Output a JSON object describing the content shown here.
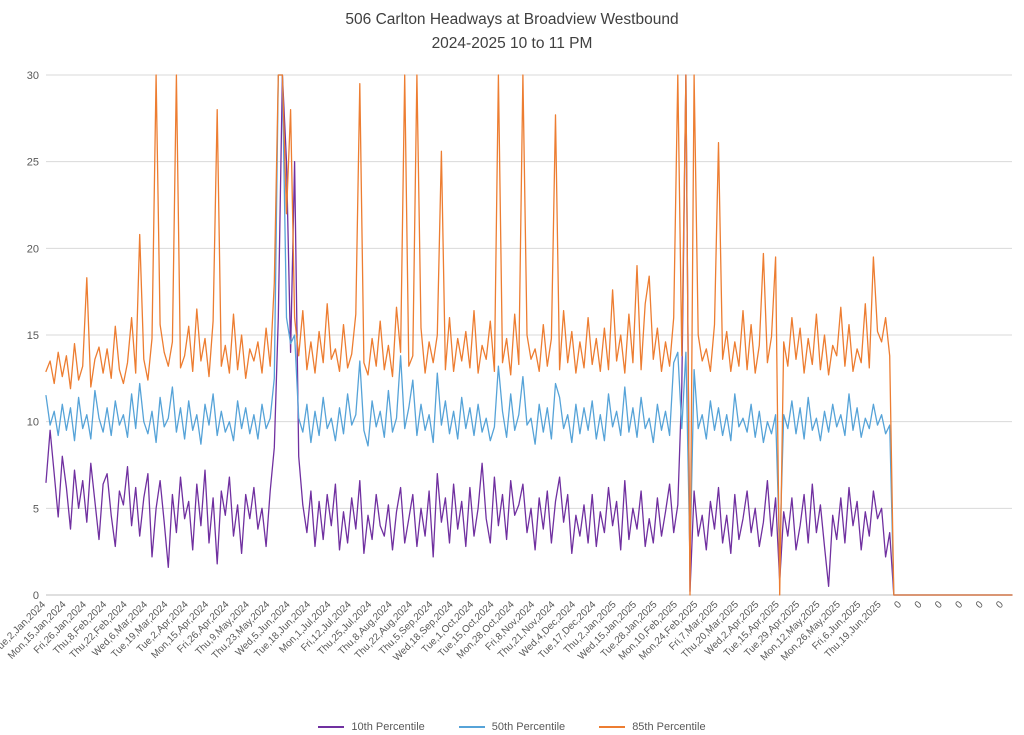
{
  "chart_data": {
    "type": "line",
    "title_line1": "506 Carlton Headways at Broadview Westbound",
    "title_line2": "2024-2025 10 to 11 PM",
    "ylabel": "",
    "xlabel": "",
    "ylim": [
      0,
      30
    ],
    "yticks": [
      0,
      5,
      10,
      15,
      20,
      25,
      30
    ],
    "grid": true,
    "legend_position": "bottom",
    "title_color": "#404040",
    "grid_color": "#D9D9D9",
    "axis_color": "#BFBFBF",
    "tick_label_color": "#595959",
    "x_tick_every": 5,
    "x_tick_labels": [
      "Tue,2,Jan,2024",
      "Mon,15,Jan,2024",
      "Fri,26,Jan,2024",
      "Thu,8,Feb,2024",
      "Thu,22,Feb,2024",
      "Wed,6,Mar,2024",
      "Tue,19,Mar,2024",
      "Tue,2,Apr,2024",
      "Mon,15,Apr,2024",
      "Fri,26,Apr,2024",
      "Thu,9,May,2024",
      "Thu,23,May,2024",
      "Wed,5,Jun,2024",
      "Tue,18,Jun,2024",
      "Mon,1,Jul,2024",
      "Fri,12,Jul,2024",
      "Thu,25,Jul,2024",
      "Thu,8,Aug,2024",
      "Thu,22,Aug,2024",
      "Thu,5,Sep,2024",
      "Wed,18,Sep,2024",
      "Tue,1,Oct,2024",
      "Tue,15,Oct,2024",
      "Mon,28,Oct,2024",
      "Fri,8,Nov,2024",
      "Thu,21,Nov,2024",
      "Wed,4,Dec,2024",
      "Tue,17,Dec,2024",
      "Thu,2,Jan,2025",
      "Wed,15,Jan,2025",
      "Tue,28,Jan,2025",
      "Mon,10,Feb,2025",
      "Mon,24,Feb,2025",
      "Fri,7,Mar,2025",
      "Thu,20,Mar,2025",
      "Wed,2,Apr,2025",
      "Tue,15,Apr,2025",
      "Tue,29,Apr,2025",
      "Mon,12,May,2025",
      "Mon,26,May,2025",
      "Fri,6,Jun,2025",
      "Thu,19,Jun,2025",
      "0",
      "0",
      "0",
      "0",
      "0",
      "0"
    ],
    "series": [
      {
        "name": "10th Percentile",
        "color": "#7030A0",
        "values": [
          6.5,
          9.5,
          7.0,
          4.5,
          8.0,
          6.2,
          3.8,
          7.2,
          5.0,
          6.6,
          4.2,
          7.6,
          5.4,
          3.2,
          6.4,
          7.0,
          4.6,
          2.8,
          6.0,
          5.2,
          7.4,
          4.0,
          6.2,
          3.4,
          5.6,
          7.0,
          2.2,
          5.0,
          6.6,
          4.2,
          1.6,
          5.8,
          3.6,
          6.8,
          4.4,
          5.4,
          2.6,
          6.4,
          4.0,
          7.2,
          3.0,
          5.6,
          1.8,
          6.0,
          4.6,
          6.8,
          3.4,
          5.2,
          2.4,
          5.8,
          4.4,
          6.2,
          3.8,
          5.0,
          2.8,
          6.0,
          8.5,
          16.0,
          30.0,
          25.0,
          14.0,
          25.0,
          8.0,
          5.2,
          3.6,
          6.0,
          2.8,
          5.4,
          3.2,
          5.8,
          4.0,
          6.4,
          2.6,
          4.8,
          3.0,
          5.6,
          3.8,
          6.6,
          2.4,
          4.6,
          3.2,
          5.8,
          4.0,
          3.4,
          5.2,
          2.6,
          4.8,
          6.2,
          3.0,
          4.4,
          5.8,
          2.8,
          5.0,
          3.4,
          6.0,
          2.2,
          7.0,
          4.2,
          5.6,
          3.0,
          6.4,
          3.8,
          5.4,
          2.8,
          6.2,
          3.4,
          5.0,
          7.6,
          4.4,
          3.0,
          6.8,
          4.0,
          5.8,
          3.2,
          6.6,
          4.6,
          5.2,
          6.4,
          3.6,
          5.0,
          2.6,
          5.6,
          3.8,
          6.0,
          3.0,
          5.4,
          6.8,
          4.2,
          5.8,
          2.4,
          4.6,
          3.4,
          5.2,
          3.0,
          5.8,
          2.8,
          4.8,
          3.6,
          6.2,
          4.0,
          5.4,
          2.6,
          6.6,
          3.2,
          5.0,
          3.8,
          6.0,
          2.8,
          4.4,
          3.0,
          5.6,
          3.4,
          4.8,
          6.4,
          3.6,
          5.2,
          12.0,
          30.0,
          0.2,
          6.0,
          3.4,
          4.6,
          2.6,
          5.4,
          3.8,
          6.2,
          3.0,
          4.6,
          2.4,
          5.8,
          3.2,
          4.4,
          6.0,
          3.6,
          5.0,
          2.8,
          4.2,
          6.6,
          3.4,
          5.6,
          0.8,
          4.8,
          3.4,
          5.6,
          2.6,
          4.0,
          5.8,
          3.0,
          6.4,
          3.6,
          5.2,
          2.8,
          0.5,
          4.6,
          3.2,
          5.6,
          3.0,
          6.2,
          4.0,
          5.4,
          2.6,
          4.8,
          3.4,
          6.0,
          4.4,
          5.0,
          2.2,
          3.6,
          0,
          0,
          0,
          0,
          0,
          0,
          0,
          0,
          0,
          0,
          0,
          0,
          0,
          0,
          0,
          0,
          0,
          0,
          0,
          0,
          0,
          0,
          0,
          0,
          0,
          0,
          0,
          0,
          0,
          0
        ]
      },
      {
        "name": "50th Percentile",
        "color": "#56A3D8",
        "values": [
          11.5,
          9.8,
          10.6,
          9.2,
          11.0,
          9.5,
          10.8,
          8.9,
          11.4,
          9.6,
          10.4,
          9.0,
          11.8,
          10.2,
          9.4,
          10.8,
          9.2,
          11.2,
          9.8,
          10.4,
          9.1,
          11.6,
          9.6,
          12.2,
          10.0,
          9.3,
          10.6,
          8.8,
          11.4,
          9.7,
          10.2,
          12.0,
          9.4,
          10.8,
          9.0,
          11.2,
          9.5,
          10.4,
          8.7,
          11.0,
          9.8,
          11.6,
          9.2,
          10.6,
          9.4,
          10.0,
          8.9,
          11.2,
          9.6,
          10.8,
          9.3,
          10.4,
          9.0,
          11.0,
          9.6,
          10.2,
          12.5,
          30.0,
          30.0,
          16.0,
          14.5,
          15.0,
          10.2,
          9.4,
          11.0,
          8.8,
          10.6,
          9.2,
          11.4,
          9.6,
          10.2,
          8.9,
          10.8,
          9.3,
          11.6,
          9.8,
          10.4,
          13.5,
          9.5,
          8.6,
          11.2,
          9.7,
          10.6,
          9.1,
          11.8,
          9.4,
          10.2,
          13.8,
          9.6,
          10.8,
          12.4,
          9.2,
          11.0,
          9.5,
          10.4,
          8.8,
          12.8,
          9.8,
          11.2,
          9.3,
          10.6,
          9.0,
          11.4,
          9.6,
          10.8,
          9.2,
          11.0,
          9.4,
          10.2,
          8.9,
          9.7,
          13.2,
          10.6,
          9.1,
          11.6,
          9.5,
          10.4,
          12.6,
          9.8,
          10.2,
          8.7,
          11.0,
          9.4,
          10.8,
          9.0,
          12.2,
          11.4,
          9.6,
          10.4,
          8.8,
          11.0,
          9.3,
          10.8,
          9.5,
          11.2,
          9.0,
          10.4,
          8.9,
          11.6,
          9.7,
          10.6,
          9.2,
          12.0,
          9.4,
          10.8,
          9.1,
          11.4,
          9.6,
          10.2,
          8.8,
          11.0,
          9.5,
          10.6,
          9.2,
          13.4,
          14.0,
          9.6,
          14.0,
          2.0,
          13.0,
          9.6,
          10.4,
          9.0,
          11.2,
          9.5,
          10.8,
          9.2,
          10.4,
          8.9,
          11.6,
          9.7,
          10.2,
          9.4,
          11.0,
          9.1,
          10.6,
          8.8,
          10.0,
          9.3,
          10.4,
          2.5,
          10.4,
          9.6,
          11.2,
          9.3,
          10.8,
          9.0,
          11.4,
          9.5,
          10.2,
          8.9,
          10.6,
          9.4,
          11.0,
          9.7,
          10.4,
          9.2,
          11.6,
          9.5,
          10.8,
          9.1,
          10.2,
          9.6,
          11.0,
          9.8,
          10.4,
          9.3,
          9.8,
          0,
          0,
          0,
          0,
          0,
          0,
          0,
          0,
          0,
          0,
          0,
          0,
          0,
          0,
          0,
          0,
          0,
          0,
          0,
          0,
          0,
          0,
          0,
          0,
          0,
          0,
          0,
          0,
          0,
          0
        ]
      },
      {
        "name": "85th Percentile",
        "color": "#ED7D31",
        "values": [
          12.9,
          13.5,
          12.2,
          14.0,
          12.6,
          13.8,
          11.9,
          14.5,
          12.4,
          13.2,
          18.3,
          12.0,
          13.6,
          14.3,
          12.8,
          14.2,
          12.5,
          15.5,
          13.0,
          12.2,
          13.4,
          16.0,
          12.8,
          20.8,
          13.6,
          12.4,
          14.8,
          30.0,
          15.6,
          14.0,
          13.2,
          14.6,
          30.0,
          13.1,
          13.8,
          15.5,
          12.9,
          16.5,
          13.5,
          14.8,
          12.6,
          15.8,
          28.0,
          13.2,
          14.4,
          12.8,
          16.2,
          13.0,
          15.0,
          12.5,
          14.2,
          13.5,
          14.6,
          12.8,
          15.4,
          13.2,
          18.0,
          30.0,
          30.0,
          22.0,
          28.0,
          16.0,
          13.8,
          16.4,
          13.0,
          14.6,
          12.8,
          15.2,
          13.4,
          16.8,
          13.6,
          14.2,
          12.9,
          15.6,
          13.1,
          13.9,
          16.2,
          29.5,
          13.4,
          12.7,
          14.8,
          13.2,
          15.8,
          13.0,
          14.4,
          12.6,
          16.6,
          14.0,
          30.0,
          13.2,
          13.8,
          30.0,
          15.4,
          12.8,
          14.6,
          13.4,
          15.0,
          25.6,
          13.0,
          16.0,
          12.9,
          14.8,
          13.5,
          15.2,
          13.1,
          16.4,
          12.8,
          14.4,
          13.6,
          15.8,
          12.9,
          30.0,
          13.4,
          14.8,
          12.7,
          16.2,
          13.3,
          30.0,
          15.0,
          13.6,
          14.2,
          12.9,
          15.6,
          13.2,
          14.8,
          27.7,
          13.0,
          16.4,
          13.4,
          15.2,
          12.8,
          14.6,
          13.1,
          16.0,
          13.3,
          14.8,
          12.9,
          15.4,
          13.0,
          17.6,
          13.5,
          15.0,
          12.8,
          16.2,
          13.4,
          19.0,
          13.0,
          16.8,
          18.4,
          13.6,
          15.4,
          12.9,
          14.6,
          13.2,
          16.0,
          30.0,
          13.8,
          30.0,
          0.0,
          30.0,
          15.0,
          13.5,
          14.2,
          12.9,
          15.6,
          26.1,
          13.6,
          15.2,
          12.9,
          14.6,
          13.2,
          16.4,
          13.0,
          15.6,
          12.8,
          14.4,
          19.7,
          13.4,
          14.9,
          19.5,
          0.0,
          14.6,
          13.2,
          16.0,
          13.6,
          15.4,
          12.8,
          14.8,
          13.3,
          16.2,
          13.0,
          15.0,
          12.7,
          14.4,
          13.8,
          16.6,
          13.2,
          15.6,
          12.9,
          14.2,
          13.4,
          16.8,
          13.1,
          19.5,
          15.2,
          14.6,
          16.0,
          13.8,
          0,
          0,
          0,
          0,
          0,
          0,
          0,
          0,
          0,
          0,
          0,
          0,
          0,
          0,
          0,
          0,
          0,
          0,
          0,
          0,
          0,
          0,
          0,
          0,
          0,
          0,
          0,
          0,
          0,
          0
        ]
      }
    ]
  }
}
